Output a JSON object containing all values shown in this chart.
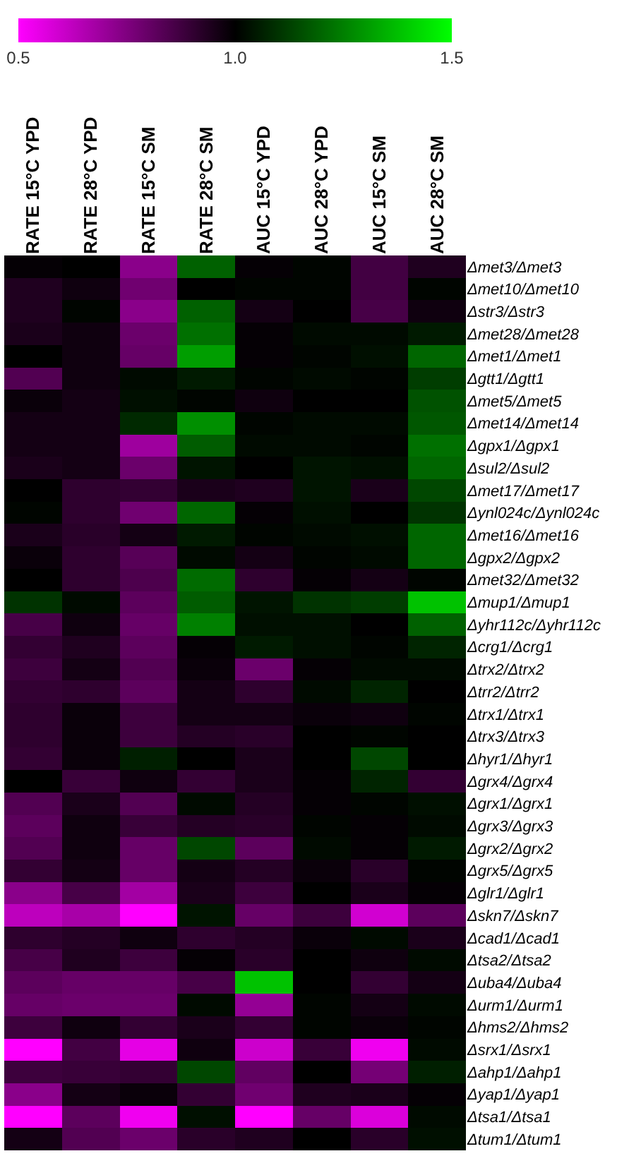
{
  "chart_data": {
    "type": "heatmap",
    "categories": [
      "RATE 15°C YPD",
      "RATE 28°C YPD",
      "RATE 15°C SM",
      "RATE 28°C SM",
      "AUC 15°C YPD",
      "AUC 28°C YPD",
      "AUC 15°C SM",
      "AUC 28°C SM"
    ],
    "y_categories": [
      "Δmet3/Δmet3",
      "Δmet10/Δmet10",
      "Δstr3/Δstr3",
      "Δmet28/Δmet28",
      "Δmet1/Δmet1",
      "Δgtt1/Δgtt1",
      "Δmet5/Δmet5",
      "Δmet14/Δmet14",
      "Δgpx1/Δgpx1",
      "Δsul2/Δsul2",
      "Δmet17/Δmet17",
      "Δynl024c/Δynl024c",
      "Δmet16/Δmet16",
      "Δgpx2/Δgpx2",
      "Δmet32/Δmet32",
      "Δmup1/Δmup1",
      "Δyhr112c/Δyhr112c",
      "Δcrg1/Δcrg1",
      "Δtrx2/Δtrx2",
      "Δtrr2/Δtrr2",
      "Δtrx1/Δtrx1",
      "Δtrx3/Δtrx3",
      "Δhyr1/Δhyr1",
      "Δgrx4/Δgrx4",
      "Δgrx1/Δgrx1",
      "Δgrx3/Δgrx3",
      "Δgrx2/Δgrx2",
      "Δgrx5/Δgrx5",
      "Δglr1/Δglr1",
      "Δskn7/Δskn7",
      "Δcad1/Δcad1",
      "Δtsa2/Δtsa2",
      "Δuba4/Δuba4",
      "Δurm1/Δurm1",
      "Δhms2/Δhms2",
      "Δsrx1/Δsrx1",
      "Δahp1/Δahp1",
      "Δyap1/Δyap1",
      "Δtsa1/Δtsa1",
      "Δtum1/Δtum1"
    ],
    "cells": [
      [
        0.99,
        1.0,
        0.73,
        1.19,
        0.99,
        1.01,
        0.87,
        0.94
      ],
      [
        0.94,
        0.97,
        0.78,
        1.0,
        1.01,
        1.01,
        0.87,
        1.01
      ],
      [
        0.94,
        1.01,
        0.73,
        1.19,
        0.96,
        1.0,
        0.86,
        0.97
      ],
      [
        0.95,
        0.97,
        0.79,
        1.22,
        0.99,
        1.02,
        1.02,
        1.05
      ],
      [
        1.0,
        0.97,
        0.8,
        1.31,
        0.99,
        1.01,
        1.03,
        1.2
      ],
      [
        0.84,
        0.97,
        1.02,
        1.05,
        1.01,
        1.02,
        1.01,
        1.12
      ],
      [
        0.98,
        0.96,
        1.03,
        1.01,
        0.97,
        1.0,
        1.0,
        1.16
      ],
      [
        0.96,
        0.96,
        1.08,
        1.28,
        1.01,
        1.02,
        1.02,
        1.17
      ],
      [
        0.96,
        0.96,
        0.69,
        1.18,
        1.02,
        1.02,
        1.01,
        1.22
      ],
      [
        0.95,
        0.96,
        0.79,
        1.04,
        1.0,
        1.04,
        1.03,
        1.2
      ],
      [
        1.0,
        0.91,
        0.9,
        0.95,
        0.94,
        1.04,
        0.95,
        1.14
      ],
      [
        1.01,
        0.91,
        0.78,
        1.2,
        0.99,
        1.03,
        1.0,
        1.1
      ],
      [
        0.95,
        0.92,
        0.96,
        1.05,
        1.01,
        1.02,
        1.03,
        1.2
      ],
      [
        0.98,
        0.91,
        0.83,
        1.02,
        0.96,
        1.01,
        1.02,
        1.2
      ],
      [
        1.0,
        0.91,
        0.85,
        1.21,
        0.91,
        0.99,
        0.96,
        1.01
      ],
      [
        1.1,
        1.02,
        0.82,
        1.18,
        1.04,
        1.1,
        1.12,
        1.38
      ],
      [
        0.86,
        0.97,
        0.8,
        1.25,
        1.03,
        1.03,
        1.0,
        1.19
      ],
      [
        0.9,
        0.94,
        0.82,
        0.99,
        1.05,
        1.03,
        1.01,
        1.07
      ],
      [
        0.88,
        0.96,
        0.84,
        0.98,
        0.79,
        0.99,
        1.02,
        1.02
      ],
      [
        0.9,
        0.91,
        0.82,
        0.96,
        0.91,
        1.02,
        1.07,
        1.0
      ],
      [
        0.91,
        0.98,
        0.88,
        0.96,
        0.96,
        0.98,
        0.97,
        1.01
      ],
      [
        0.91,
        0.98,
        0.88,
        0.93,
        0.92,
        1.0,
        1.01,
        1.0
      ],
      [
        0.9,
        0.98,
        1.06,
        1.0,
        0.95,
        1.0,
        1.14,
        1.0
      ],
      [
        1.0,
        0.89,
        0.97,
        0.9,
        0.95,
        0.99,
        1.07,
        0.9
      ],
      [
        0.84,
        0.95,
        0.84,
        1.02,
        0.93,
        0.99,
        1.01,
        1.03
      ],
      [
        0.82,
        0.97,
        0.89,
        0.93,
        0.92,
        1.01,
        0.99,
        1.02
      ],
      [
        0.84,
        0.97,
        0.8,
        1.14,
        0.82,
        1.02,
        0.99,
        1.05
      ],
      [
        0.9,
        0.96,
        0.8,
        0.96,
        0.93,
        0.98,
        0.92,
        1.01
      ],
      [
        0.73,
        0.86,
        0.68,
        0.95,
        0.88,
        1.0,
        0.95,
        0.99
      ],
      [
        0.63,
        0.67,
        0.5,
        1.04,
        0.8,
        0.88,
        0.59,
        0.82
      ],
      [
        0.91,
        0.93,
        0.97,
        0.91,
        0.93,
        0.98,
        1.02,
        0.95
      ],
      [
        0.86,
        0.94,
        0.88,
        0.99,
        0.92,
        1.0,
        0.97,
        1.02
      ],
      [
        0.82,
        0.8,
        0.8,
        0.86,
        1.38,
        1.0,
        0.9,
        0.96
      ],
      [
        0.8,
        0.79,
        0.79,
        1.02,
        0.71,
        1.01,
        0.96,
        1.02
      ],
      [
        0.88,
        0.97,
        0.9,
        0.95,
        0.9,
        1.01,
        0.98,
        1.01
      ],
      [
        0.5,
        0.87,
        0.55,
        0.97,
        0.6,
        0.89,
        0.53,
        1.02
      ],
      [
        0.88,
        0.89,
        0.9,
        1.14,
        0.81,
        1.0,
        0.77,
        1.06
      ],
      [
        0.73,
        0.96,
        0.98,
        0.9,
        0.78,
        0.94,
        0.95,
        0.99
      ],
      [
        0.5,
        0.82,
        0.53,
        1.03,
        0.5,
        0.8,
        0.57,
        1.02
      ],
      [
        0.96,
        0.84,
        0.79,
        0.92,
        0.94,
        1.0,
        0.92,
        1.03
      ]
    ],
    "clim": [
      0.5,
      1.5
    ],
    "cticks": [
      0.5,
      {
        "value": 1,
        "label": "1.0"
      },
      1.5
    ]
  }
}
